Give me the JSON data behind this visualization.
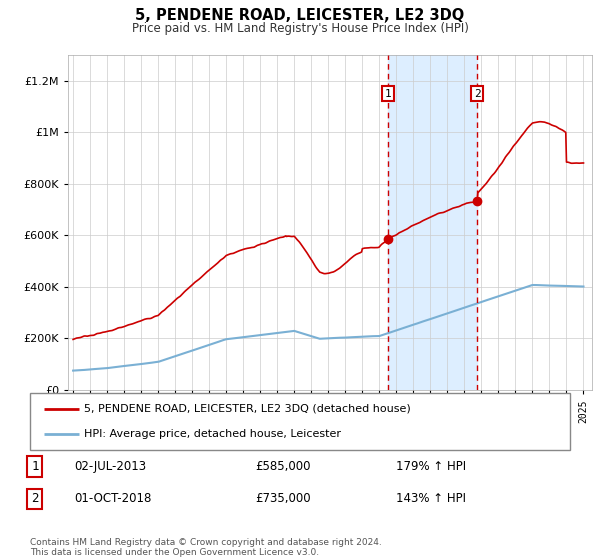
{
  "title": "5, PENDENE ROAD, LEICESTER, LE2 3DQ",
  "subtitle": "Price paid vs. HM Land Registry's House Price Index (HPI)",
  "sale1_year": 2013.5,
  "sale1_price": 585000,
  "sale1_label": "1",
  "sale2_year": 2018.75,
  "sale2_price": 735000,
  "sale2_label": "2",
  "legend_line1": "5, PENDENE ROAD, LEICESTER, LE2 3DQ (detached house)",
  "legend_line2": "HPI: Average price, detached house, Leicester",
  "row1_num": "1",
  "row1_date": "02-JUL-2013",
  "row1_price": "£585,000",
  "row1_hpi": "179% ↑ HPI",
  "row2_num": "2",
  "row2_date": "01-OCT-2018",
  "row2_price": "£735,000",
  "row2_hpi": "143% ↑ HPI",
  "footer": "Contains HM Land Registry data © Crown copyright and database right 2024.\nThis data is licensed under the Open Government Licence v3.0.",
  "red_color": "#cc0000",
  "blue_color": "#7ab0d4",
  "shade_color": "#ddeeff",
  "ylim_max": 1300000,
  "xlim_start": 1994.7,
  "xlim_end": 2025.5
}
